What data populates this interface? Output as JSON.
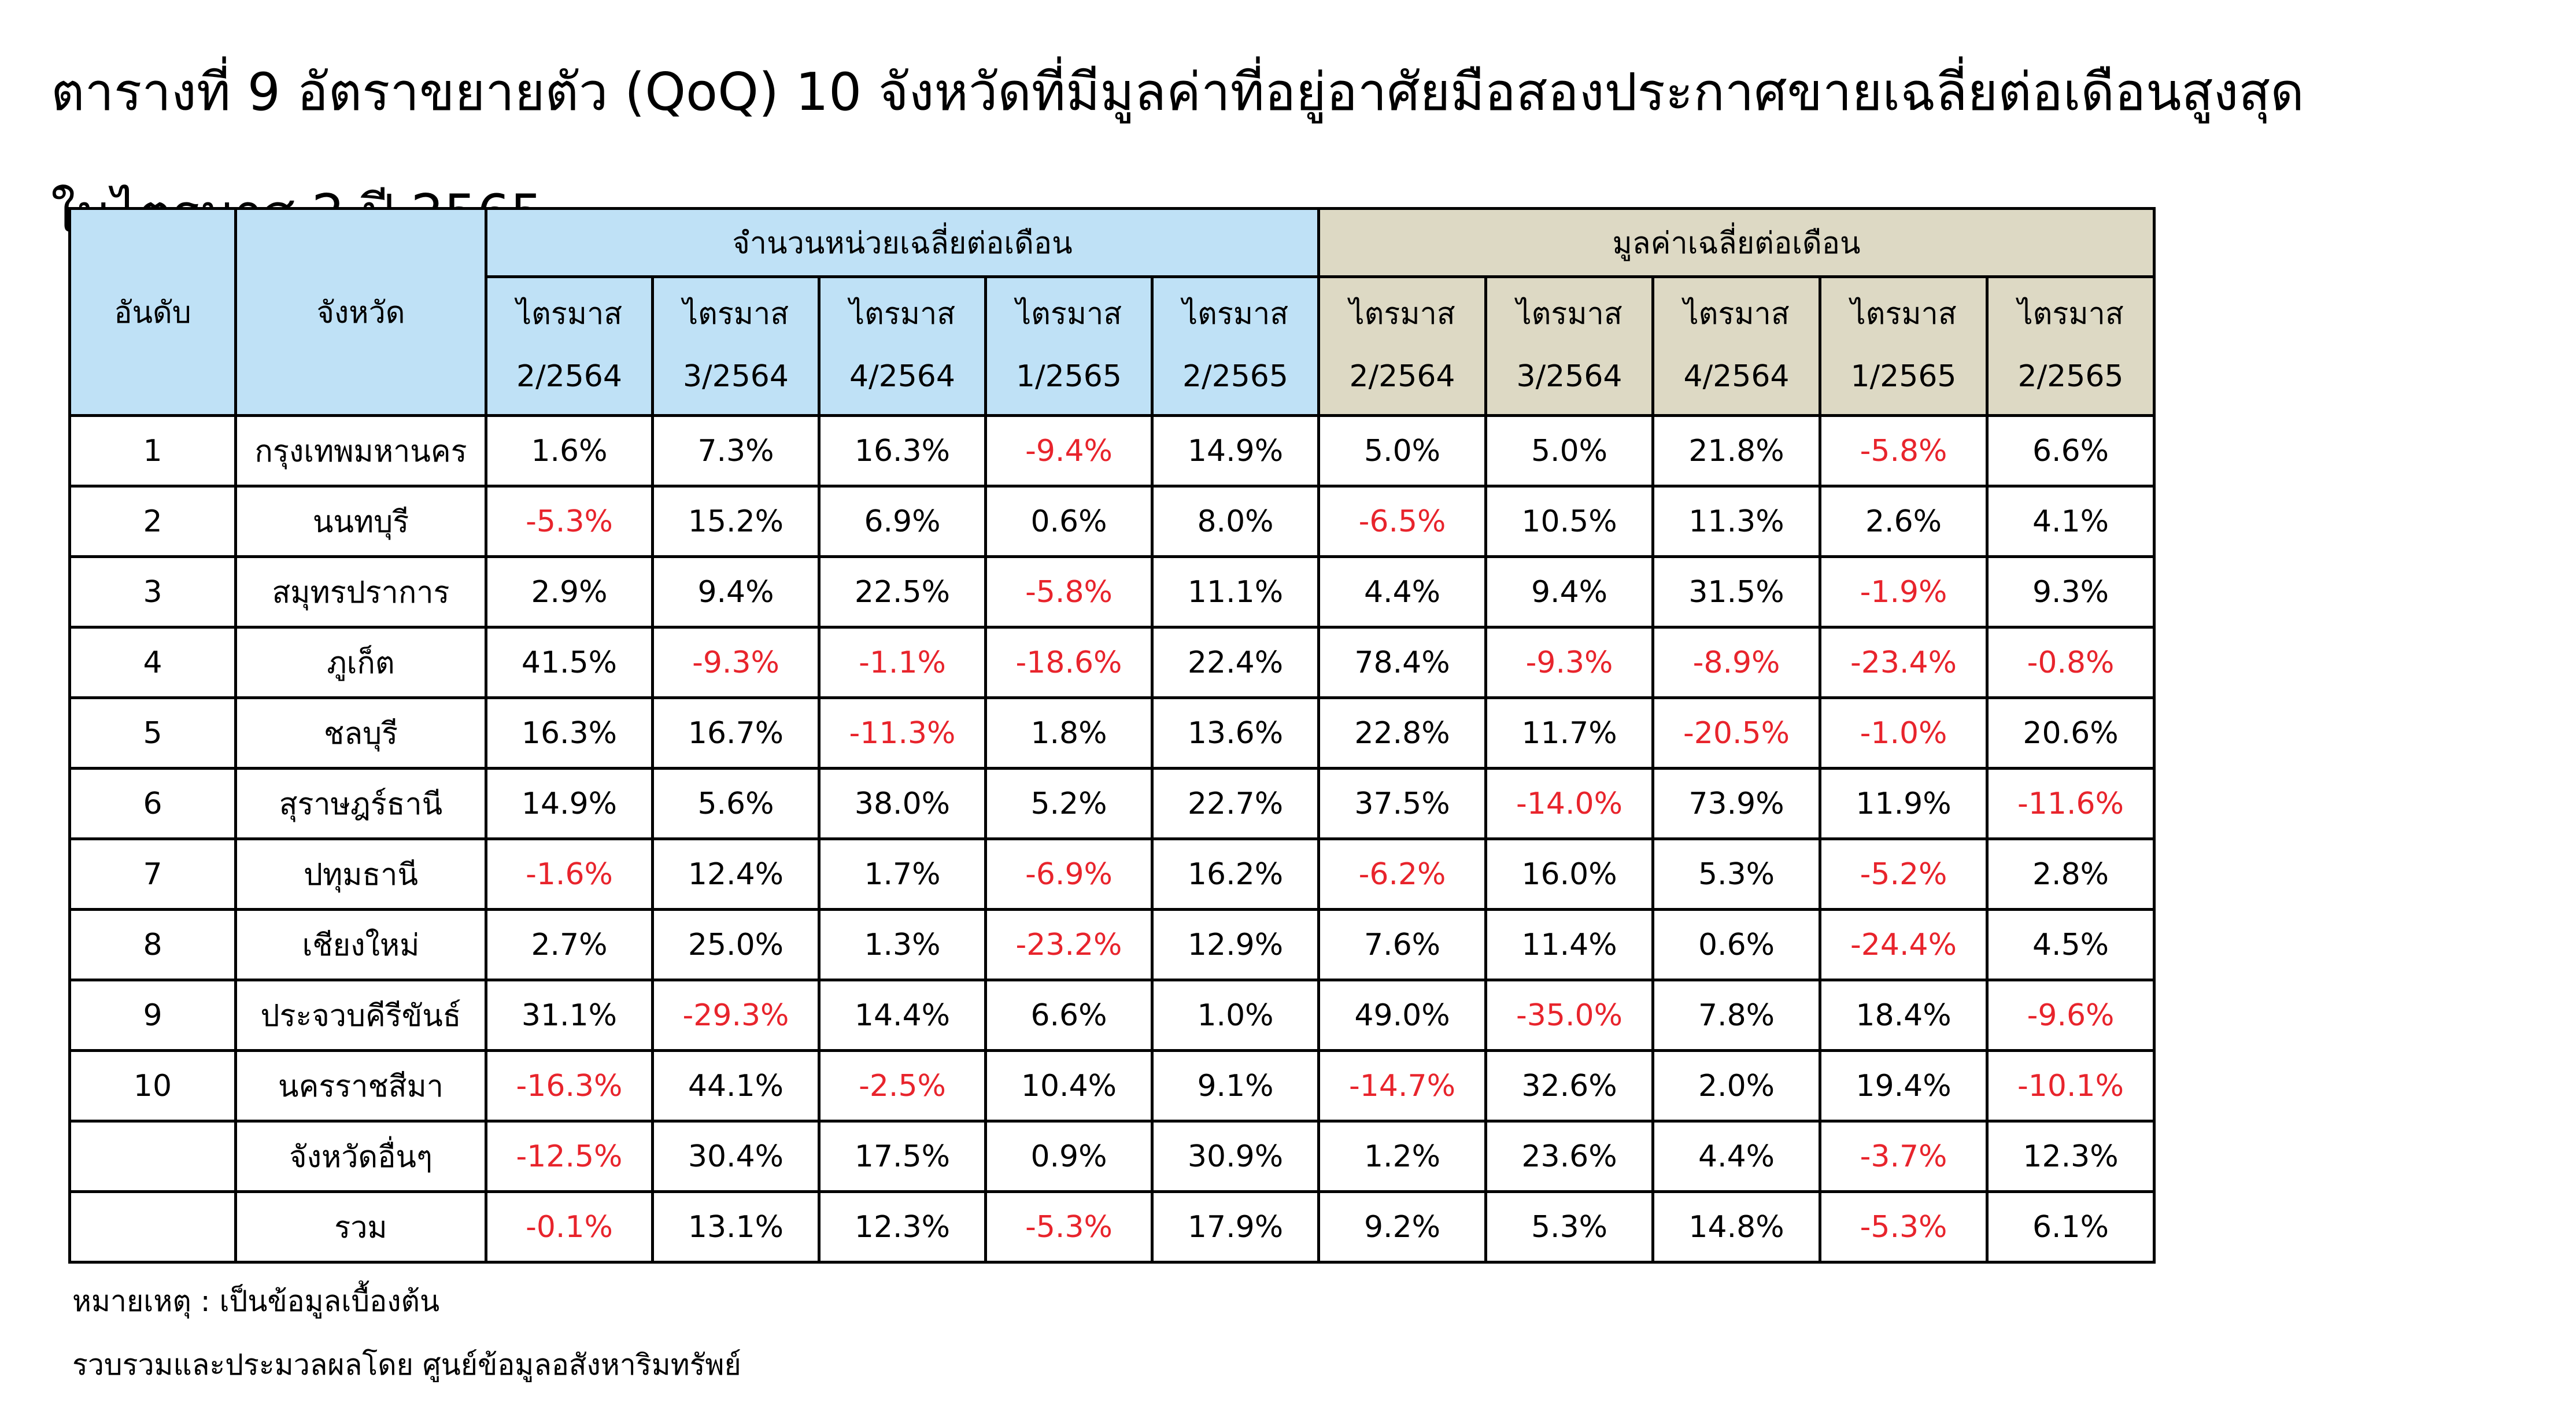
{
  "title": {
    "line1": "ตารางที่ 9 อัตราขยายตัว (QoQ) 10 จังหวัดที่มีมูลค่าที่อยู่อาศัยมือสองประกาศขายเฉลี่ยต่อเดือนสูงสุด",
    "line2": "ในไตรมาส 2 ปี 2565"
  },
  "table": {
    "header": {
      "rank": "อันดับ",
      "province": "จังหวัด",
      "group_units": "จำนวนหน่วยเฉลี่ยต่อเดือน",
      "group_value": "มูลค่าเฉลี่ยต่อเดือน",
      "quarter_word": "ไตรมาส",
      "quarters": [
        "2/2564",
        "3/2564",
        "4/2564",
        "1/2565",
        "2/2565"
      ]
    },
    "rows": [
      {
        "rank": "1",
        "province": "กรุงเทพมหานคร",
        "units": [
          "1.6%",
          "7.3%",
          "16.3%",
          "-9.4%",
          "14.9%"
        ],
        "value": [
          "5.0%",
          "5.0%",
          "21.8%",
          "-5.8%",
          "6.6%"
        ]
      },
      {
        "rank": "2",
        "province": "นนทบุรี",
        "units": [
          "-5.3%",
          "15.2%",
          "6.9%",
          "0.6%",
          "8.0%"
        ],
        "value": [
          "-6.5%",
          "10.5%",
          "11.3%",
          "2.6%",
          "4.1%"
        ]
      },
      {
        "rank": "3",
        "province": "สมุทรปราการ",
        "units": [
          "2.9%",
          "9.4%",
          "22.5%",
          "-5.8%",
          "11.1%"
        ],
        "value": [
          "4.4%",
          "9.4%",
          "31.5%",
          "-1.9%",
          "9.3%"
        ]
      },
      {
        "rank": "4",
        "province": "ภูเก็ต",
        "units": [
          "41.5%",
          "-9.3%",
          "-1.1%",
          "-18.6%",
          "22.4%"
        ],
        "value": [
          "78.4%",
          "-9.3%",
          "-8.9%",
          "-23.4%",
          "-0.8%"
        ]
      },
      {
        "rank": "5",
        "province": "ชลบุรี",
        "units": [
          "16.3%",
          "16.7%",
          "-11.3%",
          "1.8%",
          "13.6%"
        ],
        "value": [
          "22.8%",
          "11.7%",
          "-20.5%",
          "-1.0%",
          "20.6%"
        ]
      },
      {
        "rank": "6",
        "province": "สุราษฎร์ธานี",
        "units": [
          "14.9%",
          "5.6%",
          "38.0%",
          "5.2%",
          "22.7%"
        ],
        "value": [
          "37.5%",
          "-14.0%",
          "73.9%",
          "11.9%",
          "-11.6%"
        ]
      },
      {
        "rank": "7",
        "province": "ปทุมธานี",
        "units": [
          "-1.6%",
          "12.4%",
          "1.7%",
          "-6.9%",
          "16.2%"
        ],
        "value": [
          "-6.2%",
          "16.0%",
          "5.3%",
          "-5.2%",
          "2.8%"
        ]
      },
      {
        "rank": "8",
        "province": "เชียงใหม่",
        "units": [
          "2.7%",
          "25.0%",
          "1.3%",
          "-23.2%",
          "12.9%"
        ],
        "value": [
          "7.6%",
          "11.4%",
          "0.6%",
          "-24.4%",
          "4.5%"
        ]
      },
      {
        "rank": "9",
        "province": "ประจวบคีรีขันธ์",
        "units": [
          "31.1%",
          "-29.3%",
          "14.4%",
          "6.6%",
          "1.0%"
        ],
        "value": [
          "49.0%",
          "-35.0%",
          "7.8%",
          "18.4%",
          "-9.6%"
        ]
      },
      {
        "rank": "10",
        "province": "นครราชสีมา",
        "units": [
          "-16.3%",
          "44.1%",
          "-2.5%",
          "10.4%",
          "9.1%"
        ],
        "value": [
          "-14.7%",
          "32.6%",
          "2.0%",
          "19.4%",
          "-10.1%"
        ]
      },
      {
        "rank": "",
        "province": "จังหวัดอื่นๆ",
        "units": [
          "-12.5%",
          "30.4%",
          "17.5%",
          "0.9%",
          "30.9%"
        ],
        "value": [
          "1.2%",
          "23.6%",
          "4.4%",
          "-3.7%",
          "12.3%"
        ]
      },
      {
        "rank": "",
        "province": "รวม",
        "units": [
          "-0.1%",
          "13.1%",
          "12.3%",
          "-5.3%",
          "17.9%"
        ],
        "value": [
          "9.2%",
          "5.3%",
          "14.8%",
          "-5.3%",
          "6.1%"
        ]
      }
    ]
  },
  "notes": {
    "remark": "หมายเหตุ : เป็นข้อมูลเบื้องต้น",
    "source": "รวบรวมและประมวลผลโดย ศูนย์ข้อมูลอสังหาริมทรัพย์"
  },
  "colors": {
    "units_header_bg": "#bfe1f6",
    "value_header_bg": "#ddd9c4",
    "negative_text": "#e8242c"
  }
}
